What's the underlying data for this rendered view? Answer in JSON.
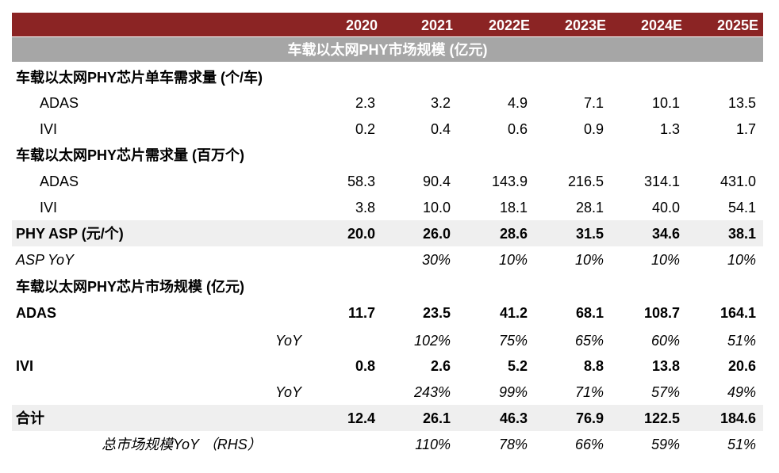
{
  "header": {
    "columns": [
      "2020",
      "2021",
      "2022E",
      "2023E",
      "2024E",
      "2025E"
    ]
  },
  "section_title": "车载以太网PHY市场规模 (亿元)",
  "rows": [
    {
      "label": "车载以太网PHY芯片单车需求量 (个/车)"
    },
    {
      "label": "ADAS",
      "values": [
        "2.3",
        "3.2",
        "4.9",
        "7.1",
        "10.1",
        "13.5"
      ]
    },
    {
      "label": "IVI",
      "values": [
        "0.2",
        "0.4",
        "0.6",
        "0.9",
        "1.3",
        "1.7"
      ]
    },
    {
      "label": "车载以太网PHY芯片需求量 (百万个)"
    },
    {
      "label": "ADAS",
      "values": [
        "58.3",
        "90.4",
        "143.9",
        "216.5",
        "314.1",
        "431.0"
      ]
    },
    {
      "label": "IVI",
      "values": [
        "3.8",
        "10.0",
        "18.1",
        "28.1",
        "40.0",
        "54.1"
      ]
    },
    {
      "label": "PHY ASP (元/个)",
      "values": [
        "20.0",
        "26.0",
        "28.6",
        "31.5",
        "34.6",
        "38.1"
      ]
    },
    {
      "label": "ASP YoY",
      "values": [
        null,
        "30%",
        "10%",
        "10%",
        "10%",
        "10%"
      ]
    },
    {
      "label": "车载以太网PHY芯片市场规模 (亿元)"
    },
    {
      "label": "ADAS",
      "values": [
        "11.7",
        "23.5",
        "41.2",
        "68.1",
        "108.7",
        "164.1"
      ]
    },
    {
      "label": "YoY",
      "values": [
        null,
        "102%",
        "75%",
        "65%",
        "60%",
        "51%"
      ]
    },
    {
      "label": "IVI",
      "values": [
        "0.8",
        "2.6",
        "5.2",
        "8.8",
        "13.8",
        "20.6"
      ]
    },
    {
      "label": "YoY",
      "values": [
        null,
        "243%",
        "99%",
        "71%",
        "57%",
        "49%"
      ]
    },
    {
      "label": "合计",
      "values": [
        "12.4",
        "26.1",
        "46.3",
        "76.9",
        "122.5",
        "184.6"
      ]
    },
    {
      "label": "总市场规模YoY （RHS）",
      "values": [
        null,
        "110%",
        "78%",
        "66%",
        "59%",
        "51%"
      ]
    }
  ]
}
